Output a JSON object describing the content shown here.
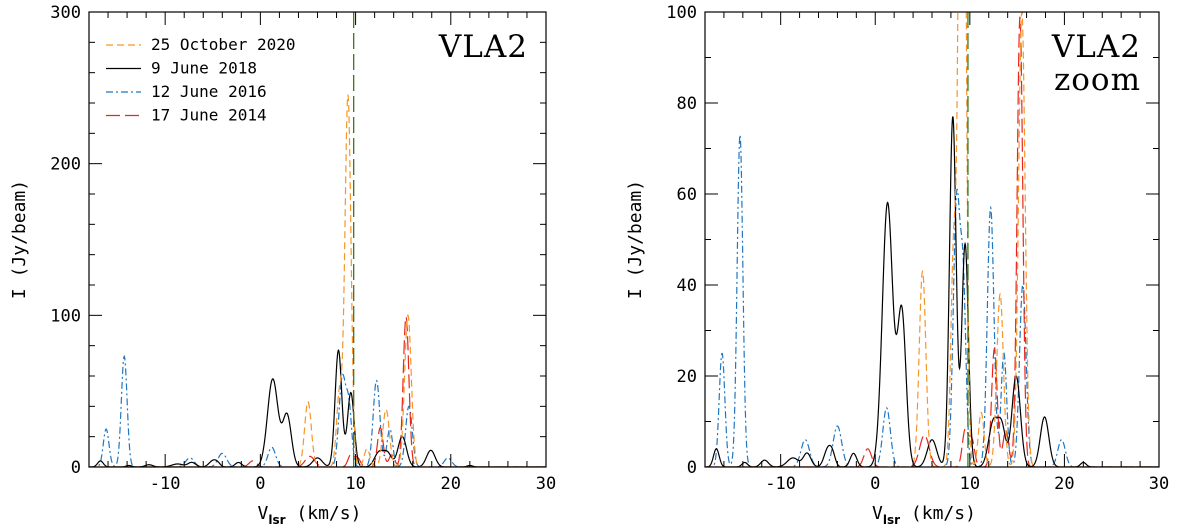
{
  "chart_data": [
    {
      "type": "line",
      "title_lines": [
        "VLA2"
      ],
      "xlabel": "V",
      "xlabel_sub": "lsr",
      "xlabel_units": " (km/s)",
      "ylabel": "I (Jy/beam)",
      "xlim": [
        -18,
        30
      ],
      "ylim": [
        0,
        300
      ],
      "xticks": [
        -10,
        0,
        10,
        20,
        30
      ],
      "yticks": [
        0,
        100,
        200,
        300
      ],
      "x_minor": 2,
      "y_minor": 20,
      "vline": {
        "x": 9.8,
        "color": "#3a7a1e"
      },
      "legend": {
        "placement": "top-left",
        "entries": [
          "25 October 2020",
          "9 June 2018",
          "12 June 2016",
          "17 June 2014"
        ]
      },
      "series": [
        {
          "name": "25 October 2020",
          "color": "#f5962a",
          "dash": "dashed",
          "peaks": [
            [
              5.0,
              43,
              0.35
            ],
            [
              8.3,
              48,
              0.3
            ],
            [
              9.2,
              245,
              0.32
            ],
            [
              11.2,
              12,
              0.3
            ],
            [
              13.2,
              38,
              0.35
            ],
            [
              15.5,
              100,
              0.35
            ]
          ]
        },
        {
          "name": "9 June 2018",
          "color": "#000000",
          "dash": "solid",
          "peaks": [
            [
              -16.8,
              4,
              0.3
            ],
            [
              -13.8,
              1,
              0.3
            ],
            [
              -11.7,
              1.5,
              0.4
            ],
            [
              -8.7,
              2,
              0.6
            ],
            [
              -7.2,
              3,
              0.4
            ],
            [
              -5.0,
              4,
              0.4
            ],
            [
              -4.5,
              2,
              0.3
            ],
            [
              -2.3,
              3,
              0.35
            ],
            [
              1.3,
              58,
              0.55
            ],
            [
              2.8,
              34,
              0.45
            ],
            [
              6.0,
              6,
              0.5
            ],
            [
              8.2,
              77,
              0.35
            ],
            [
              9.5,
              49,
              0.35
            ],
            [
              12.5,
              10,
              0.5
            ],
            [
              13.4,
              8,
              0.4
            ],
            [
              14.9,
              20,
              0.45
            ],
            [
              17.9,
              11,
              0.45
            ],
            [
              22.0,
              1,
              0.3
            ]
          ]
        },
        {
          "name": "12 June 2016",
          "color": "#1f77c4",
          "dash": "dashdot",
          "peaks": [
            [
              -16.2,
              25,
              0.3
            ],
            [
              -14.3,
              73,
              0.3
            ],
            [
              -7.4,
              6,
              0.45
            ],
            [
              -4.0,
              9,
              0.45
            ],
            [
              1.2,
              13,
              0.4
            ],
            [
              8.6,
              58,
              0.35
            ],
            [
              9.3,
              38,
              0.3
            ],
            [
              12.2,
              57,
              0.35
            ],
            [
              13.6,
              25,
              0.3
            ],
            [
              15.6,
              40,
              0.35
            ],
            [
              19.7,
              6,
              0.4
            ]
          ]
        },
        {
          "name": "17 June 2014",
          "color": "#e8261f",
          "dash": "longdash",
          "peaks": [
            [
              -0.8,
              4,
              0.4
            ],
            [
              5.2,
              7,
              0.5
            ],
            [
              9.5,
              8,
              0.3
            ],
            [
              10.2,
              6,
              0.3
            ],
            [
              12.6,
              26,
              0.3
            ],
            [
              13.8,
              8,
              0.3
            ],
            [
              15.3,
              99,
              0.3
            ]
          ]
        }
      ]
    },
    {
      "type": "line",
      "title_lines": [
        "VLA2",
        "zoom"
      ],
      "xlabel": "V",
      "xlabel_sub": "lsr",
      "xlabel_units": " (km/s)",
      "ylabel": "I (Jy/beam)",
      "xlim": [
        -18,
        30
      ],
      "ylim": [
        0,
        100
      ],
      "xticks": [
        -10,
        0,
        10,
        20,
        30
      ],
      "yticks": [
        0,
        20,
        40,
        60,
        80,
        100
      ],
      "x_minor": 2,
      "y_minor": 10,
      "vline": {
        "x": 9.8,
        "color": "#3a7a1e"
      },
      "series_ref": 0
    }
  ]
}
